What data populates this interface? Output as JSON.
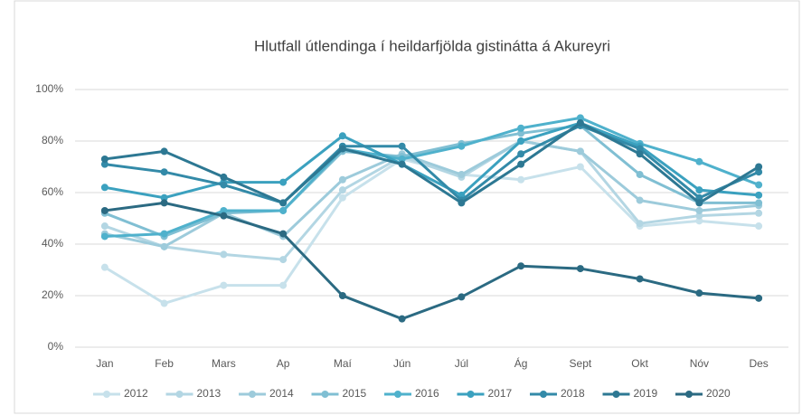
{
  "chart_data": {
    "type": "line",
    "title": "Hlutfall útlendinga í heildarfjölda gistinátta á Akureyri",
    "categories": [
      "Jan",
      "Feb",
      "Mars",
      "Ap",
      "Maí",
      "Jún",
      "Júl",
      "Ág",
      "Sept",
      "Okt",
      "Nóv",
      "Des"
    ],
    "series": [
      {
        "name": "2012",
        "color": "#c7e1eb",
        "values": [
          31,
          17,
          24,
          24,
          58,
          73,
          67,
          65,
          70,
          47,
          49,
          47
        ]
      },
      {
        "name": "2013",
        "color": "#b3d6e3",
        "values": [
          47,
          39,
          36,
          34,
          61,
          74,
          66,
          80,
          76,
          48,
          51,
          52
        ]
      },
      {
        "name": "2014",
        "color": "#9dcbdb",
        "values": [
          44,
          39,
          52,
          43,
          65,
          75,
          67,
          80,
          76,
          57,
          53,
          55
        ]
      },
      {
        "name": "2015",
        "color": "#80bfd3",
        "values": [
          52,
          43,
          52,
          53,
          76,
          74,
          79,
          83,
          86,
          67,
          56,
          56
        ]
      },
      {
        "name": "2016",
        "color": "#4fb1cc",
        "values": [
          43,
          44,
          53,
          53,
          77,
          73,
          78,
          85,
          89,
          79,
          72,
          63
        ]
      },
      {
        "name": "2017",
        "color": "#3ba1bf",
        "values": [
          62,
          58,
          64,
          64,
          82,
          71,
          59,
          80,
          87,
          78,
          61,
          59
        ]
      },
      {
        "name": "2018",
        "color": "#338aa8",
        "values": [
          71,
          68,
          63,
          56,
          78,
          78,
          57,
          75,
          86,
          77,
          58,
          68
        ]
      },
      {
        "name": "2019",
        "color": "#2d7893",
        "values": [
          73,
          76,
          66,
          56,
          77,
          71,
          56,
          71,
          87,
          75,
          56,
          70
        ]
      },
      {
        "name": "2020",
        "color": "#2b6a82",
        "values": [
          53,
          56,
          51,
          44,
          20,
          11,
          19.5,
          31.5,
          30.5,
          26.5,
          21,
          19
        ]
      }
    ],
    "ylim": [
      0,
      100
    ],
    "yticks": [
      {
        "value": 0,
        "label": "0%"
      },
      {
        "value": 20,
        "label": "20%"
      },
      {
        "value": 40,
        "label": "40%"
      },
      {
        "value": 60,
        "label": "60%"
      },
      {
        "value": 80,
        "label": "80%"
      },
      {
        "value": 100,
        "label": "100%"
      }
    ],
    "grid": true,
    "legend": "bottom"
  }
}
